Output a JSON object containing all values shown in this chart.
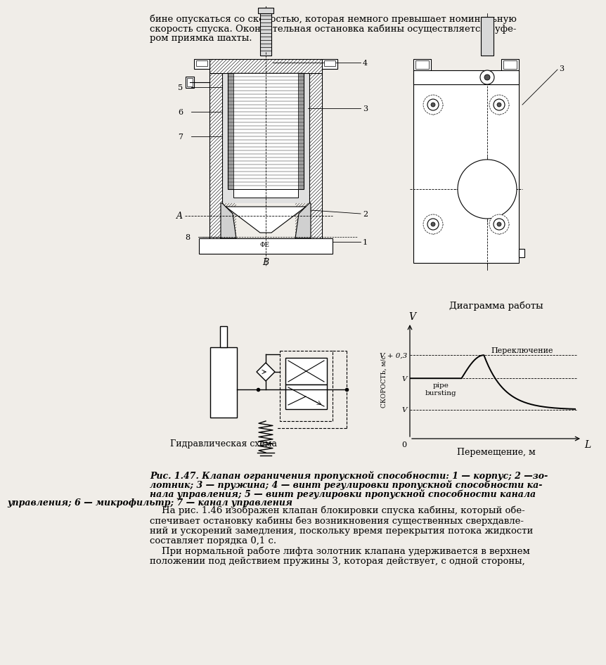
{
  "bg_color": "#f0ede8",
  "top_text_lines": [
    "бине опускаться со скоростью, которая немного превышает номинальную",
    "скорость спуска. Окончательная остановка кабины осуществляется буфе-",
    "ром приямка шахты."
  ],
  "label_hydraulic": "Гидравлическая схема",
  "label_diagram": "Диаграмма работы",
  "caption_line1": "Рис. 1.47. Клапан ограничения пропускной способности: 1 — корпус; 2 —зо-",
  "caption_line2": "лотник; 3 — пружина; 4 — винт регулировки пропускной способности ка-",
  "caption_line3": "нала управления; 5 — винт регулировки пропускной способности канала",
  "caption_line4": "управления; 6 — микрофильтр; 7 — канал управления",
  "bottom_line1": "    На рис. 1.46 изображен клапан блокировки спуска кабины, который обе-",
  "bottom_line2": "спечивает остановку кабины без возникновения существенных сверхдавле-",
  "bottom_line3": "ний и ускорений замедления, поскольку время перекрытия потока жидкости",
  "bottom_line4": "составляет порядка 0,1 с.",
  "bottom_line5": "    При нормальной работе лифта золотник клапана удерживается в верхнем",
  "bottom_line6": "положении под действием пружины 3, которая действует, с одной стороны,"
}
